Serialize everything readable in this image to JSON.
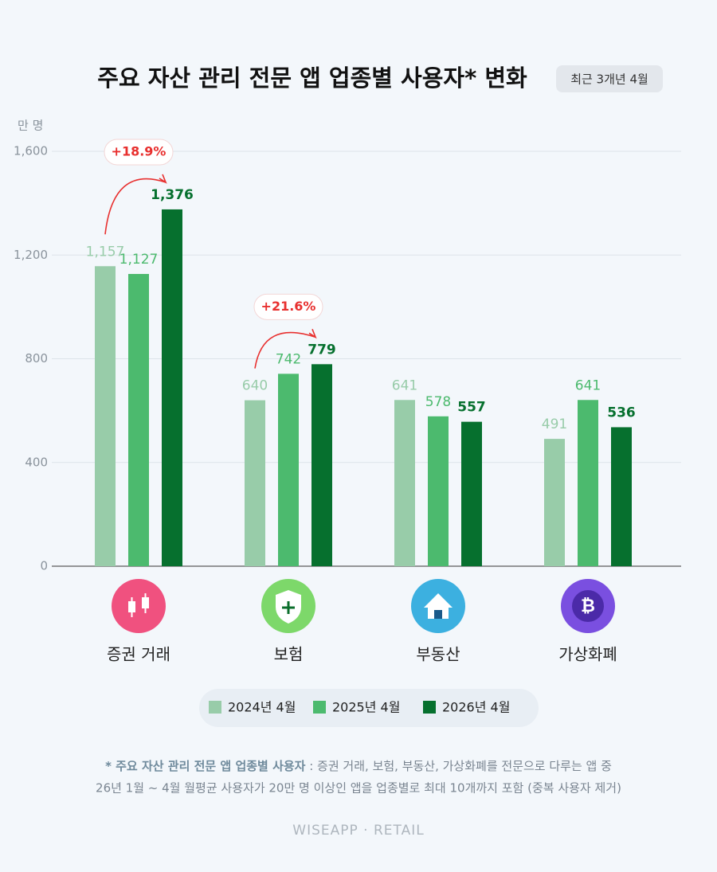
{
  "chart_data": {
    "type": "bar",
    "title": "주요 자산 관리 전문 앱 업종별 사용자* 변화",
    "badge": "최근 3개년 4월",
    "y_label": "만 명",
    "categories": [
      "증권 거래",
      "보험",
      "부동산",
      "가상화폐"
    ],
    "series": [
      {
        "name": "2024년 4월",
        "color": "#98cca9",
        "values": [
          1157,
          640,
          641,
          491
        ],
        "value_labels": [
          "1,157",
          "640",
          "641",
          "491"
        ]
      },
      {
        "name": "2025년 4월",
        "color": "#4cba6e",
        "values": [
          1127,
          742,
          578,
          641
        ],
        "value_labels": [
          "1,127",
          "742",
          "578",
          "641"
        ]
      },
      {
        "name": "2026년 4월",
        "color": "#06702e",
        "values": [
          1376,
          779,
          557,
          536
        ],
        "value_labels": [
          "1,376",
          "779",
          "557",
          "536"
        ]
      }
    ],
    "ylim": [
      0,
      1600
    ],
    "yticks": [
      0,
      400,
      800,
      {
        "value": 1200,
        "label": "1,200"
      },
      {
        "value": 1600,
        "label": "1,600"
      }
    ],
    "grid": true,
    "annotations": [
      "+18.9%",
      "+21.6%"
    ],
    "footnote": {
      "term": "* 주요 자산 관리 전문 앱 업종별 사용자",
      "text": " : 증권 거래, 보험, 부동산, 가상화폐를 전문으로 다루는 앱 중",
      "text2": "26년 1월 ~ 4월 월평균 사용자가 20만 명 이상인 앱을 업종별로 최대 10개까지 포함 (중복 사용자 제거)"
    },
    "brand": "WISEAPP · RETAIL"
  }
}
